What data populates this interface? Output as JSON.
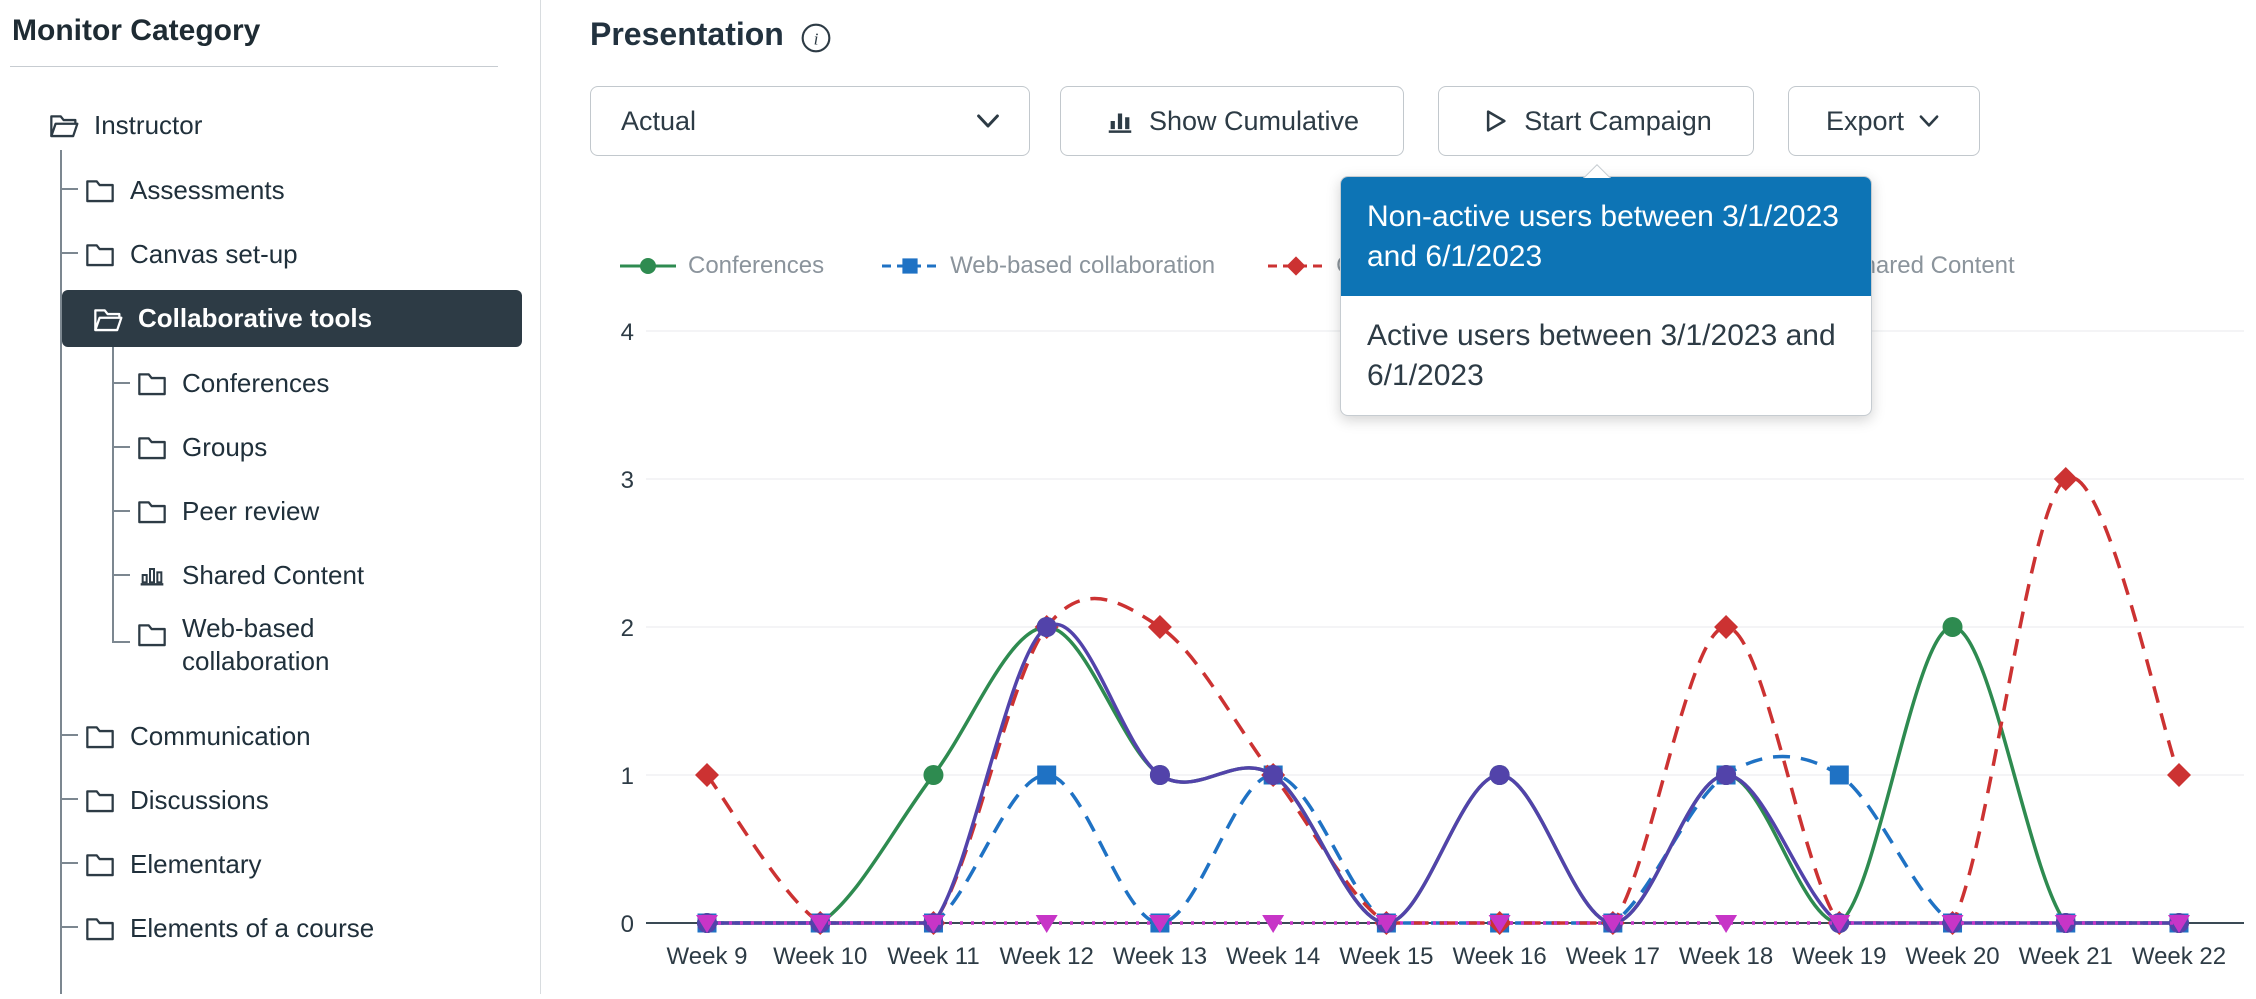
{
  "colors": {
    "accent_blue": "#0d74b5",
    "sidebar_selected_bg": "#2d3b45",
    "text_dark": "#2d3b45",
    "legend_label": "#8b949c",
    "grid_line": "#e8eaed",
    "axis_line": "#3a4a55"
  },
  "sidebar": {
    "title": "Monitor Category",
    "tree": {
      "root": "Instructor",
      "level1": [
        "Assessments",
        "Canvas set-up",
        "Collaborative tools",
        "Communication",
        "Discussions",
        "Elementary",
        "Elements of a course"
      ],
      "collaborative_children": [
        "Conferences",
        "Groups",
        "Peer review",
        "Shared Content",
        "Web-based collaboration"
      ],
      "selected_item": "Collaborative tools"
    }
  },
  "header": {
    "title": "Presentation"
  },
  "toolbar": {
    "view_select": {
      "value": "Actual"
    },
    "show_cumulative_label": "Show Cumulative",
    "start_campaign_label": "Start Campaign",
    "export_label": "Export"
  },
  "campaign_menu": {
    "items": [
      {
        "label": "Non-active users between 3/1/2023 and 6/1/2023",
        "highlighted": true
      },
      {
        "label": "Active users between 3/1/2023 and 6/1/2023",
        "highlighted": false
      }
    ]
  },
  "legend": {
    "entries": [
      {
        "label": "Conferences",
        "color": "#2e8b50",
        "marker": "circle",
        "line": "solid",
        "occluded_by_menu": false
      },
      {
        "label": "Groups",
        "color": "#cc3232",
        "marker": "diamond",
        "line": "dashed",
        "occluded_by_menu": true
      },
      {
        "label": "Web-based collaboration",
        "color": "#1f72c4",
        "marker": "square",
        "line": "dashed",
        "occluded_by_menu": false
      },
      {
        "label": "Peer review",
        "color": "#5243aa",
        "marker": "circle",
        "line": "solid",
        "occluded_by_menu": true
      },
      {
        "label": "Shared Content",
        "color": "#c735c7",
        "marker": "triangle-down",
        "line": "dotted",
        "occluded_by_menu": false
      }
    ],
    "display_order": [
      "Conferences",
      "Web-based collaboration",
      "Groups",
      "Peer review",
      "Shared Content"
    ]
  },
  "chart_data": {
    "type": "line",
    "x": [
      "Week 9",
      "Week 10",
      "Week 11",
      "Week 12",
      "Week 13",
      "Week 14",
      "Week 15",
      "Week 16",
      "Week 17",
      "Week 18",
      "Week 19",
      "Week 20",
      "Week 21",
      "Week 22"
    ],
    "yticks": [
      0,
      1,
      2,
      3,
      4
    ],
    "ylim": [
      0,
      4
    ],
    "grid": true,
    "legend_position": "top",
    "series": [
      {
        "name": "Conferences",
        "color": "#2e8b50",
        "marker": "circle",
        "line": "solid",
        "values": [
          0,
          0,
          1,
          2,
          1,
          1,
          0,
          1,
          0,
          1,
          0,
          2,
          0,
          0
        ]
      },
      {
        "name": "Web-based collaboration",
        "color": "#1f72c4",
        "marker": "square",
        "line": "dashed",
        "values": [
          0,
          0,
          0,
          1,
          0,
          1,
          0,
          0,
          0,
          1,
          1,
          0,
          0,
          0
        ]
      },
      {
        "name": "Groups",
        "color": "#cc3232",
        "marker": "diamond",
        "line": "dashed",
        "values": [
          1,
          0,
          0,
          2,
          2,
          1,
          0,
          0,
          0,
          2,
          0,
          0,
          3,
          1
        ]
      },
      {
        "name": "Peer review",
        "color": "#5243aa",
        "marker": "circle",
        "line": "solid",
        "values": [
          0,
          0,
          0,
          2,
          1,
          1,
          0,
          1,
          0,
          1,
          0,
          0,
          0,
          0
        ]
      },
      {
        "name": "Shared Content",
        "color": "#c735c7",
        "marker": "triangle-down",
        "line": "dotted",
        "values": [
          0,
          0,
          0,
          0,
          0,
          0,
          0,
          0,
          0,
          0,
          0,
          0,
          0,
          0
        ]
      }
    ]
  }
}
